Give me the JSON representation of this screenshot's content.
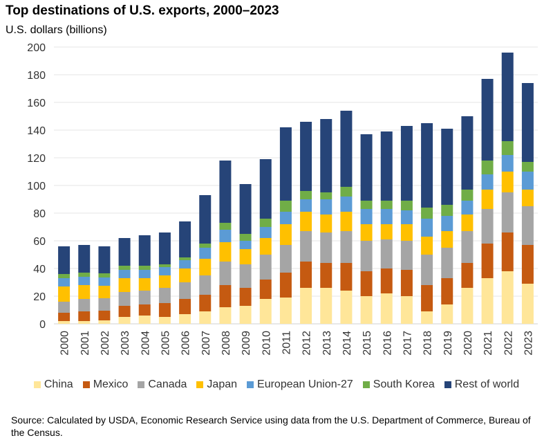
{
  "chart_data": {
    "type": "bar",
    "stacked": true,
    "title": "Top destinations of U.S. exports, 2000–2023",
    "ylabel": "U.S. dollars (billions)",
    "xlabel": "",
    "ylim": [
      0,
      200
    ],
    "yticks": [
      0,
      20,
      40,
      60,
      80,
      100,
      120,
      140,
      160,
      180,
      200
    ],
    "grid": true,
    "legend_position": "bottom",
    "categories": [
      "2000",
      "2001",
      "2002",
      "2003",
      "2004",
      "2005",
      "2006",
      "2007",
      "2008",
      "2009",
      "2010",
      "2011",
      "2012",
      "2013",
      "2014",
      "2015",
      "2016",
      "2017",
      "2018",
      "2019",
      "2020",
      "2021",
      "2022",
      "2023"
    ],
    "series": [
      {
        "name": "China",
        "color": "#FFE699",
        "values": [
          2,
          2,
          2.5,
          5,
          6,
          5,
          7,
          9,
          12,
          13,
          18,
          19,
          26,
          26,
          24,
          20,
          22,
          20,
          9,
          14,
          26,
          33,
          38,
          29
        ]
      },
      {
        "name": "Mexico",
        "color": "#C55A11",
        "values": [
          6,
          7,
          7,
          8,
          8,
          10,
          11,
          12,
          16,
          13,
          14,
          18,
          19,
          18,
          20,
          18,
          18,
          19,
          19,
          19,
          18,
          25,
          28,
          28
        ]
      },
      {
        "name": "Canada",
        "color": "#A5A5A5",
        "values": [
          8,
          9,
          9,
          10,
          10,
          11,
          12,
          14,
          17,
          17,
          18,
          20,
          22,
          22,
          23,
          22,
          21,
          21,
          22,
          22,
          23,
          25,
          29,
          28
        ]
      },
      {
        "name": "Japan",
        "color": "#FFC000",
        "values": [
          11,
          10,
          9,
          10,
          9,
          9,
          10,
          12,
          14,
          11,
          12,
          15,
          14,
          13,
          14,
          12,
          11,
          12,
          13,
          12,
          12,
          14,
          15,
          12
        ]
      },
      {
        "name": "European Union-27",
        "color": "#5B9BD5",
        "values": [
          6,
          6,
          6,
          6,
          6,
          6,
          6,
          8,
          9,
          6,
          8,
          9,
          9,
          11,
          11,
          11,
          11,
          10,
          13,
          11,
          10,
          11,
          12,
          13
        ]
      },
      {
        "name": "South Korea",
        "color": "#70AD47",
        "values": [
          3,
          3,
          3,
          3,
          3,
          2,
          2,
          3,
          5,
          5,
          6,
          8,
          6,
          5,
          7,
          6,
          6,
          7,
          8,
          8,
          8,
          10,
          10,
          7
        ]
      },
      {
        "name": "Rest of world",
        "color": "#264478",
        "values": [
          20,
          20,
          19.5,
          20,
          22,
          23,
          26,
          35,
          45,
          36,
          43,
          53,
          50,
          53,
          55,
          48,
          50,
          54,
          61,
          55,
          53,
          59,
          64,
          57
        ]
      }
    ]
  },
  "source": "Source: Calculated by USDA, Economic Research Service using data from the U.S. Department of Commerce, Bureau of the Census."
}
